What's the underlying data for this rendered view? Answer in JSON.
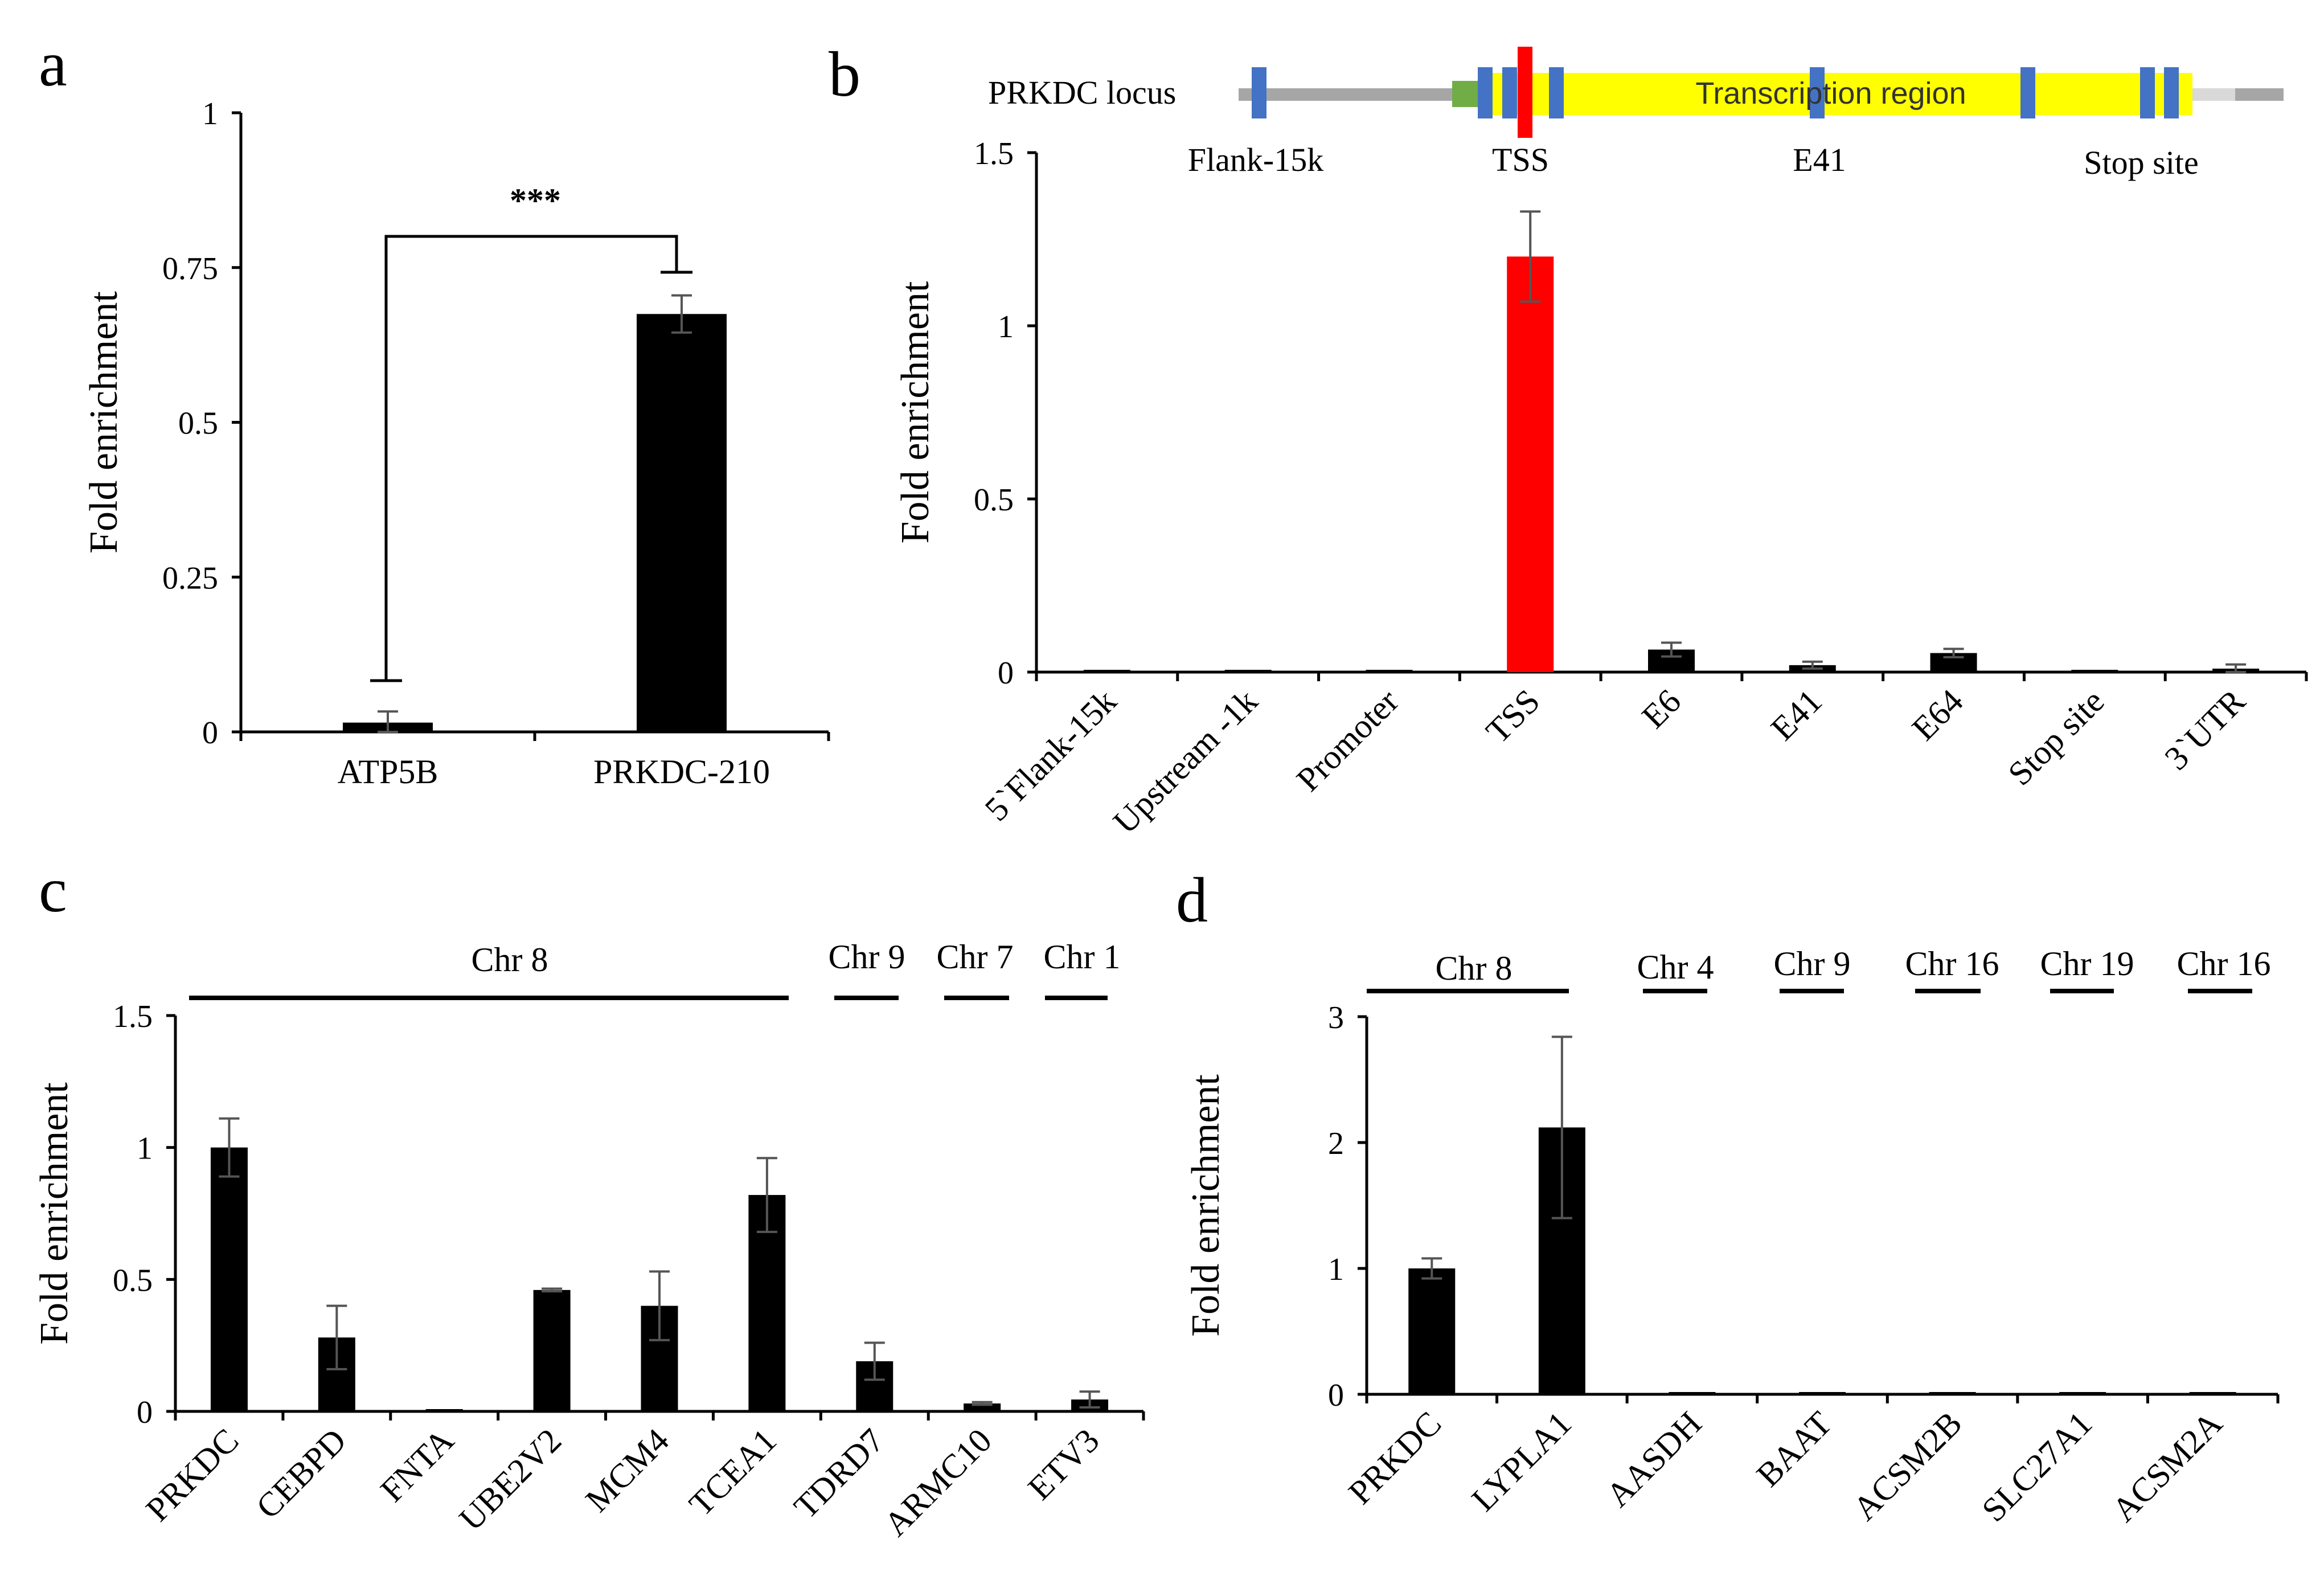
{
  "colors": {
    "bar": "#000000",
    "highlight": "#ff0000",
    "error": "#555555",
    "exon": "#4472c4",
    "promoter": "#70ad47",
    "transcript": "#ffff00",
    "flank": "#a6a6a6",
    "utr": "#d9d9d9",
    "marker": "#ff0000"
  },
  "panels": {
    "a": {
      "letter": "a",
      "significance": "***"
    },
    "b": {
      "letter": "b",
      "locus_title": "PRKDC locus",
      "region_label": "Transcription region",
      "locus_labels": [
        "Flank-15k",
        "TSS",
        "E41",
        "Stop site"
      ]
    },
    "c": {
      "letter": "c",
      "chr_groups": [
        "Chr 8",
        "Chr 9",
        "Chr 7",
        "Chr 1"
      ]
    },
    "d": {
      "letter": "d",
      "chr_groups": [
        "Chr 8",
        "Chr 4",
        "Chr 9",
        "Chr 16",
        "Chr 19",
        "Chr 16"
      ]
    }
  },
  "chart_data": [
    {
      "panel": "a",
      "type": "bar",
      "ylabel": "Fold enrichment",
      "ylim": [
        0,
        1
      ],
      "yticks": [
        "0",
        "0.25",
        "0.5",
        "0.75",
        "1"
      ],
      "categories": [
        "ATP5B",
        "PRKDC-210"
      ],
      "values": [
        0.015,
        0.675
      ],
      "errors": [
        0.018,
        0.03
      ]
    },
    {
      "panel": "b",
      "type": "bar",
      "ylabel": "Fold enrichment",
      "ylim": [
        0,
        1.5
      ],
      "yticks": [
        "0",
        "0.5",
        "1",
        "1.5"
      ],
      "categories": [
        "5`Flank-15k",
        "Upstream -1k",
        "Promoter",
        "TSS",
        "E6",
        "E41",
        "E64",
        "Stop site",
        "3`UTR"
      ],
      "values": [
        0.005,
        0.005,
        0.005,
        1.2,
        0.065,
        0.02,
        0.055,
        0.005,
        0.01
      ],
      "errors": [
        0,
        0,
        0,
        0.13,
        0.02,
        0.01,
        0.012,
        0,
        0.012
      ],
      "highlight_index": 3
    },
    {
      "panel": "c",
      "type": "bar",
      "ylabel": "Fold enrichment",
      "ylim": [
        0,
        1.5
      ],
      "yticks": [
        "0",
        "0.5",
        "1",
        "1.5"
      ],
      "categories": [
        "PRKDC",
        "CEBPD",
        "FNTA",
        "UBE2V2",
        "MCM4",
        "TCEA1",
        "TDRD7",
        "ARMC10",
        "ETV3"
      ],
      "values": [
        1.0,
        0.28,
        0.005,
        0.46,
        0.4,
        0.82,
        0.19,
        0.03,
        0.045
      ],
      "errors": [
        0.11,
        0.12,
        0,
        0.005,
        0.13,
        0.14,
        0.07,
        0.005,
        0.03
      ]
    },
    {
      "panel": "d",
      "type": "bar",
      "ylabel": "Fold enrichment",
      "ylim": [
        0,
        3
      ],
      "yticks": [
        "0",
        "1",
        "2",
        "3"
      ],
      "categories": [
        "PRKDC",
        "LYPLA1",
        "AASDH",
        "BAAT",
        "ACSM2B",
        "SLC27A1",
        "ACSM2A"
      ],
      "values": [
        1.0,
        2.12,
        0.01,
        0.01,
        0.01,
        0.01,
        0.01
      ],
      "errors": [
        0.08,
        0.72,
        0,
        0,
        0,
        0,
        0
      ]
    }
  ]
}
